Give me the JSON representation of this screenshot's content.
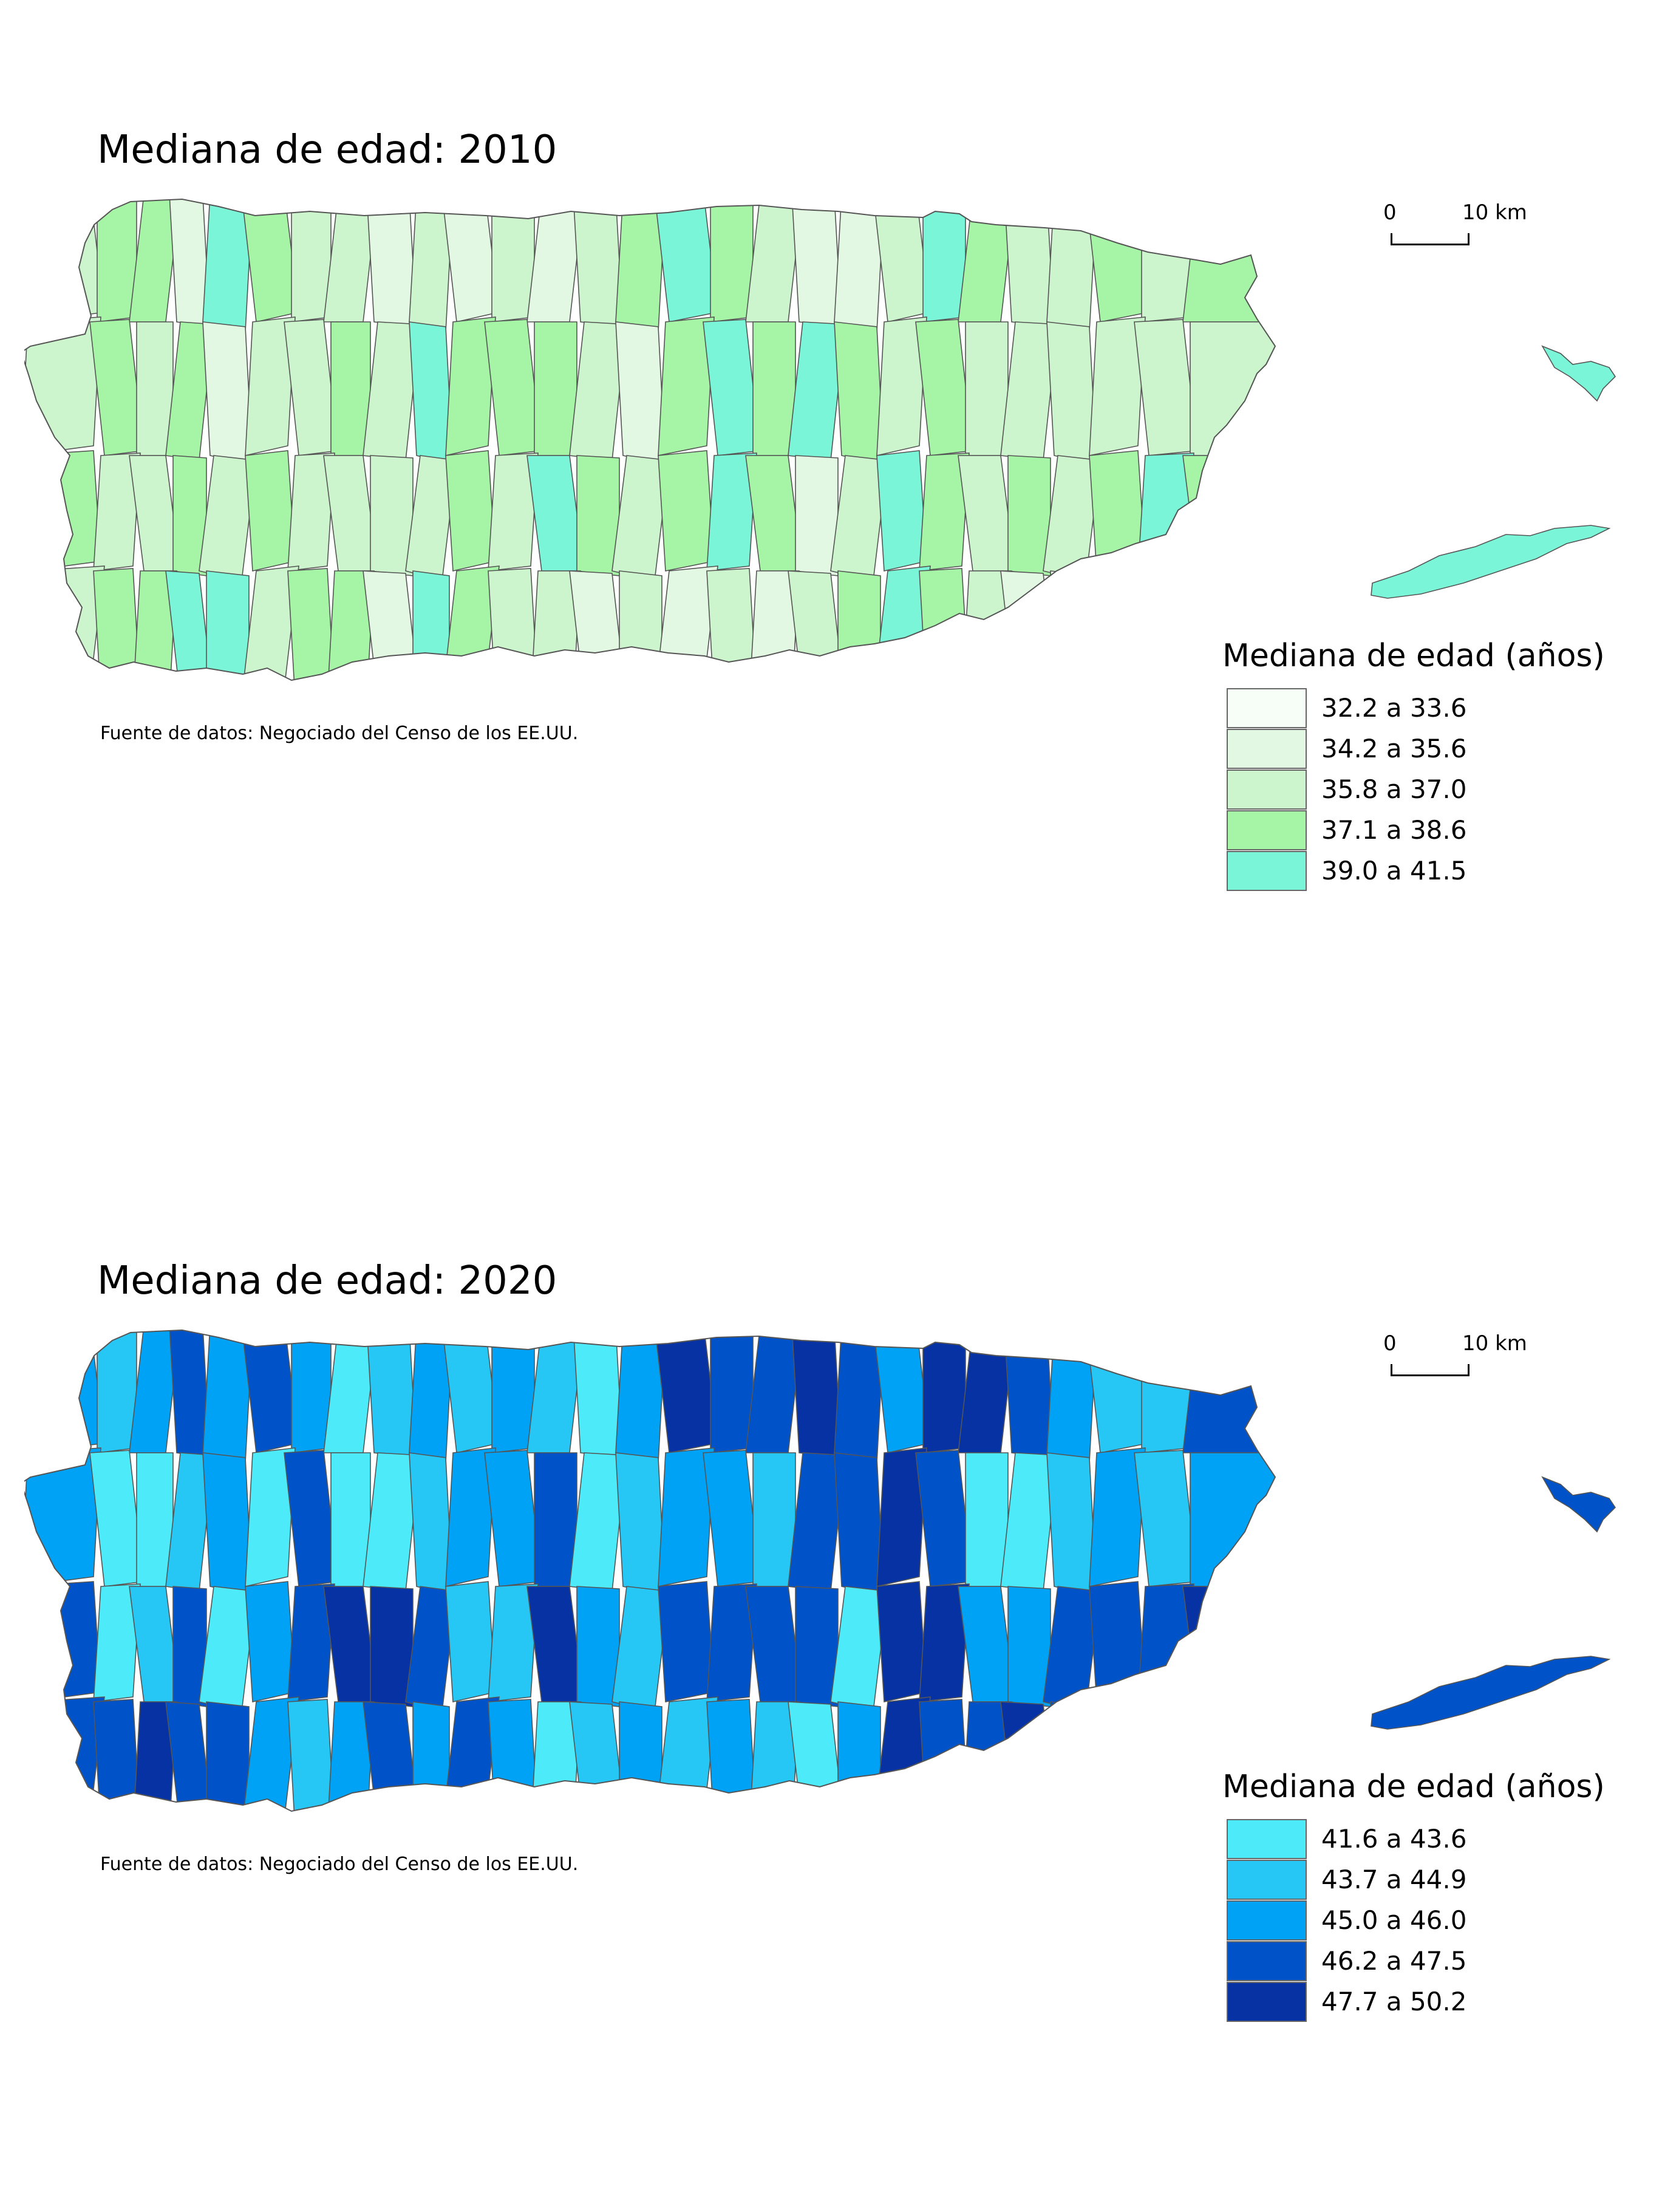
{
  "panels": [
    {
      "title": "Mediana de edad: 2010",
      "scale": {
        "zero": "0",
        "distance": "10 km"
      },
      "source": "Fuente de datos: Negociado del Censo de los EE.UU.",
      "legend": {
        "title": "Mediana de edad (años)",
        "items": [
          {
            "label": "32.2 a 33.6",
            "color": "#f7fdf7"
          },
          {
            "label": "34.2 a 35.6",
            "color": "#e2f8e2"
          },
          {
            "label": "35.8 a 37.0",
            "color": "#cdf5cd"
          },
          {
            "label": "37.1 a 38.6",
            "color": "#a6f5a6"
          },
          {
            "label": "39.0 a 41.5",
            "color": "#7af5d7"
          }
        ]
      },
      "region_classes": [
        2,
        3,
        3,
        1,
        4,
        3,
        2,
        2,
        1,
        2,
        1,
        2,
        1,
        2,
        3,
        4,
        3,
        2,
        1,
        1,
        2,
        4,
        3,
        2,
        2,
        3,
        2,
        3,
        2,
        3,
        2,
        3,
        1,
        2,
        2,
        3,
        2,
        4,
        3,
        3,
        3,
        2,
        1,
        3,
        4,
        3,
        4,
        3,
        2,
        3,
        2,
        2,
        2,
        2,
        2,
        2,
        3,
        2,
        2,
        3,
        2,
        3,
        2,
        2,
        2,
        2,
        3,
        2,
        4,
        3,
        2,
        3,
        4,
        3,
        1,
        2,
        4,
        3,
        2,
        3,
        2,
        3,
        4,
        3,
        2,
        3,
        3,
        4,
        4
      ]
    },
    {
      "title": "Mediana de edad: 2020",
      "scale": {
        "zero": "0",
        "distance": "10 km"
      },
      "source": "Fuente de datos: Negociado del Censo de los EE.UU.",
      "legend": {
        "title": "Mediana de edad (años)",
        "items": [
          {
            "label": "41.6 a 43.6",
            "color": "#4debfa"
          },
          {
            "label": "43.7 a 44.9",
            "color": "#26c6f5"
          },
          {
            "label": "45.0 a 46.0",
            "color": "#00a2f5"
          },
          {
            "label": "46.2 a 47.5",
            "color": "#0052c9"
          },
          {
            "label": "47.7 a 50.2",
            "color": "#0632a3"
          }
        ]
      },
      "region_classes": [
        2,
        1,
        2,
        3,
        2,
        3,
        2,
        0,
        1,
        2,
        1,
        2,
        1,
        0,
        2,
        4,
        3,
        3,
        4,
        3,
        2,
        4,
        4,
        3,
        2,
        1,
        1,
        3,
        2,
        0,
        0,
        1,
        2,
        0,
        3,
        0,
        0,
        1,
        2,
        2,
        3,
        0,
        1,
        2,
        2,
        1,
        3,
        3,
        4,
        3,
        0,
        0,
        1,
        2,
        1,
        2,
        3,
        0,
        1,
        3,
        0,
        2,
        3,
        4,
        4,
        3,
        1,
        1,
        4,
        2,
        1,
        3,
        3,
        3,
        3,
        0,
        4,
        4,
        2,
        2,
        3,
        3,
        3,
        4,
        3,
        3,
        4,
        3,
        3
      ]
    }
  ]
}
